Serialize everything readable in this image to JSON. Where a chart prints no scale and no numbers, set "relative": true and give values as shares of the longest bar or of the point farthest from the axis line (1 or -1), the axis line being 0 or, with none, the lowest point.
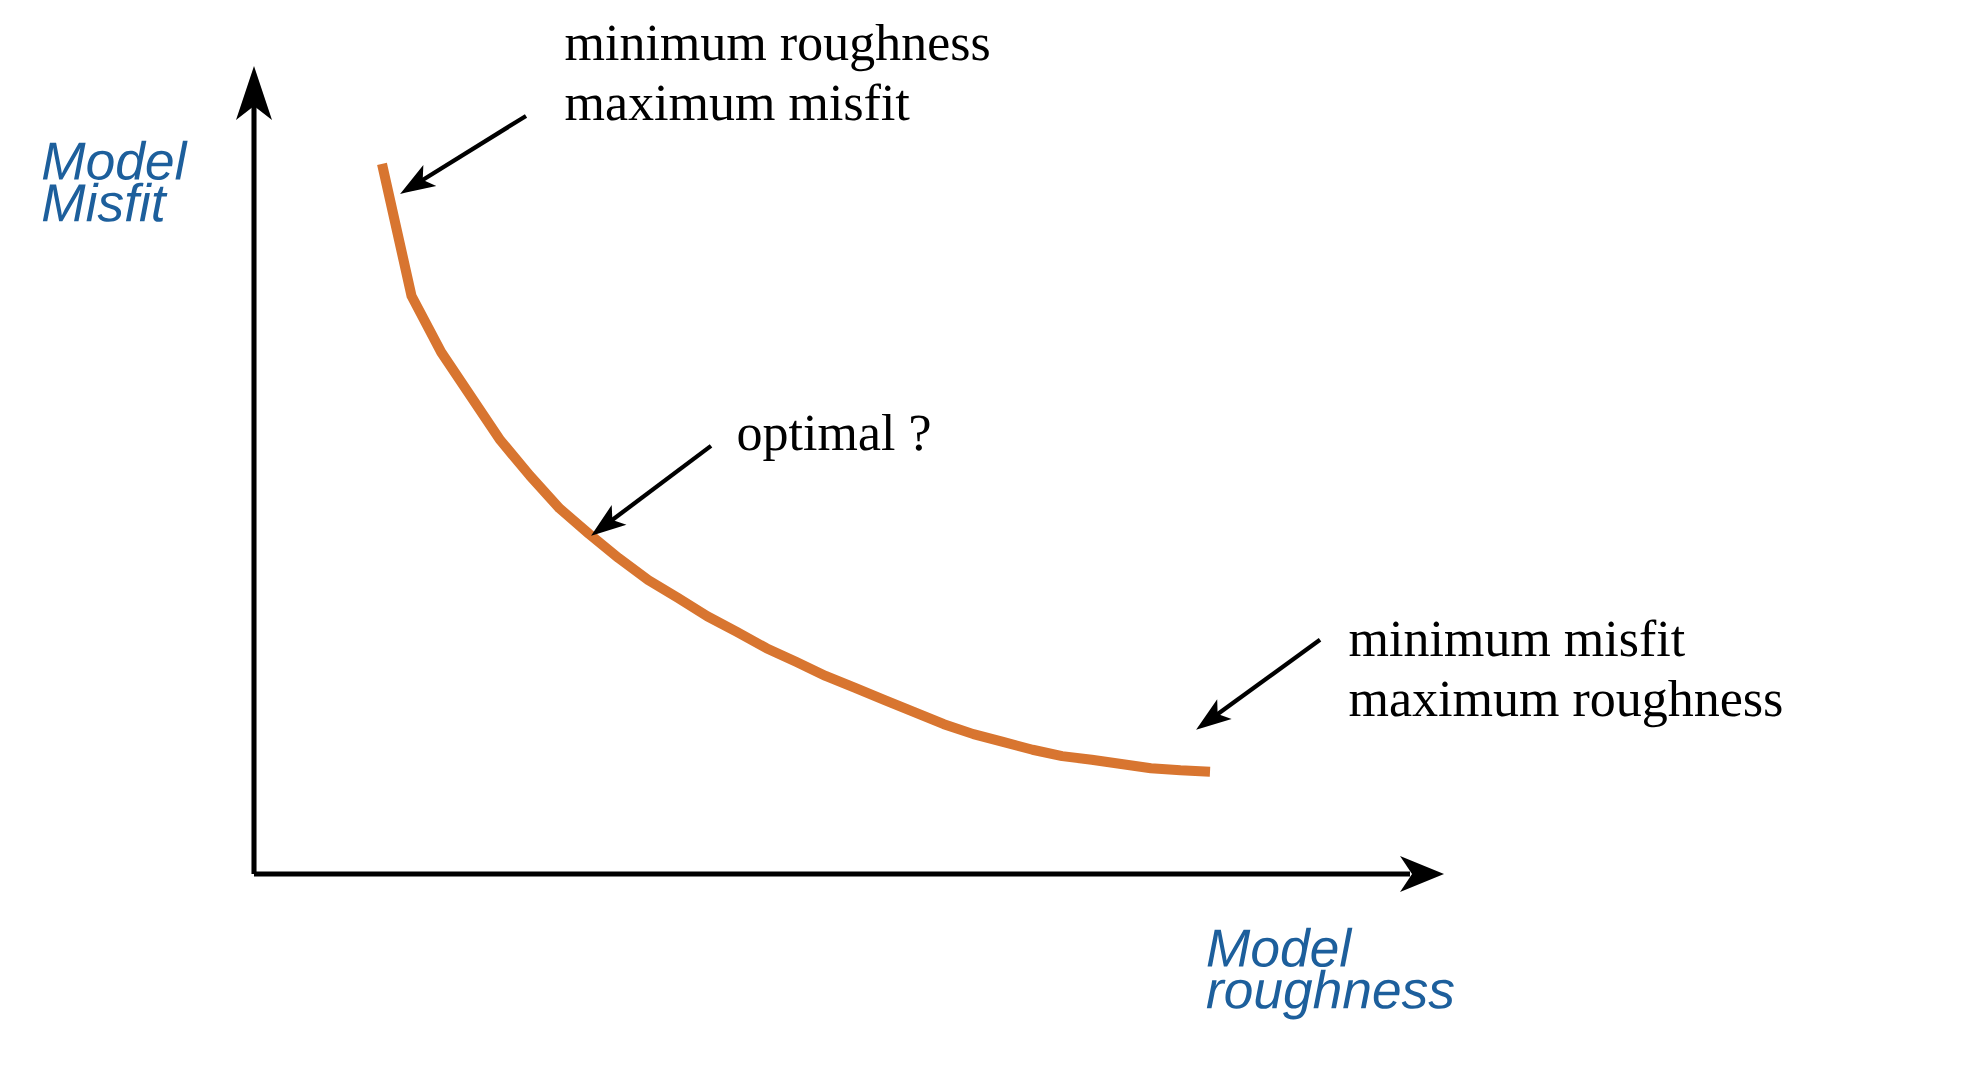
{
  "chart_data": {
    "type": "line",
    "relative": true,
    "tick_labels": false,
    "xlabel": "Model roughness",
    "ylabel": "Model Misfit",
    "categories": [
      null,
      null,
      null,
      null,
      null,
      null,
      null,
      null,
      null,
      null,
      null,
      null,
      null,
      null,
      null,
      null,
      null,
      null,
      null,
      null,
      null,
      null,
      null,
      null,
      null,
      null,
      null,
      null,
      null
    ],
    "series": [
      {
        "color": "#d87530",
        "values": [
          1.0,
          0.814,
          0.735,
          0.673,
          0.611,
          0.561,
          0.515,
          0.479,
          0.445,
          0.414,
          0.389,
          0.363,
          0.341,
          0.318,
          0.299,
          0.279,
          0.262,
          0.245,
          0.228,
          0.211,
          0.197,
          0.186,
          0.175,
          0.166,
          0.161,
          0.155,
          0.149,
          0.146,
          0.144
        ]
      }
    ],
    "annotations": [
      "minimum roughness",
      "maximum misfit",
      "optimal ?",
      "minimum misfit",
      "maximum roughness"
    ]
  }
}
